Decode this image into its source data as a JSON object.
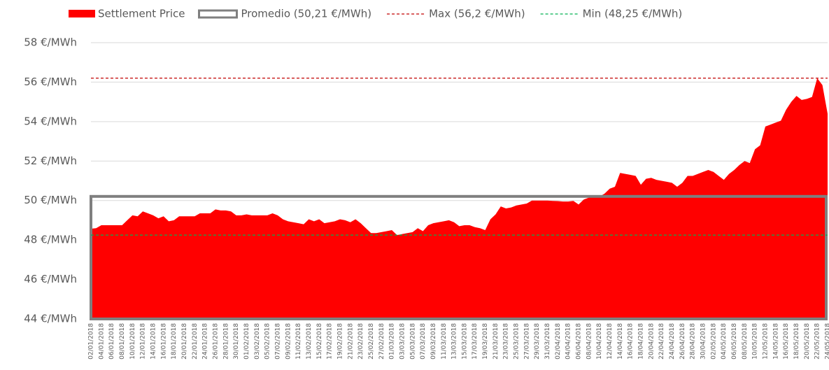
{
  "chart_data": {
    "type": "area",
    "series": [
      {
        "name": "Settlement Price",
        "color": "#ff0000",
        "values": [
          48.57,
          48.6,
          48.75,
          48.75,
          48.75,
          48.75,
          48.75,
          49.0,
          49.25,
          49.2,
          49.45,
          49.35,
          49.25,
          49.1,
          49.2,
          48.95,
          49.0,
          49.2,
          49.2,
          49.2,
          49.2,
          49.35,
          49.35,
          49.35,
          49.55,
          49.5,
          49.5,
          49.45,
          49.25,
          49.25,
          49.3,
          49.25,
          49.25,
          49.25,
          49.25,
          49.35,
          49.25,
          49.05,
          48.95,
          48.9,
          48.85,
          48.8,
          49.05,
          48.95,
          49.05,
          48.85,
          48.9,
          48.95,
          49.05,
          49.0,
          48.9,
          49.05,
          48.85,
          48.6,
          48.35,
          48.35,
          48.4,
          48.45,
          48.5,
          48.25,
          48.3,
          48.35,
          48.4,
          48.6,
          48.45,
          48.75,
          48.85,
          48.9,
          48.95,
          49.0,
          48.9,
          48.7,
          48.75,
          48.75,
          48.65,
          48.6,
          48.5,
          49.05,
          49.3,
          49.7,
          49.6,
          49.65,
          49.75,
          49.8,
          49.85,
          50.0,
          50.0,
          50.0,
          50.0,
          49.98,
          49.97,
          49.95,
          49.95,
          49.98,
          49.8,
          50.05,
          50.15,
          50.2,
          50.2,
          50.35,
          50.6,
          50.7,
          51.4,
          51.35,
          51.3,
          51.25,
          50.8,
          51.1,
          51.15,
          51.05,
          51.0,
          50.95,
          50.9,
          50.7,
          50.9,
          51.25,
          51.25,
          51.35,
          51.45,
          51.55,
          51.45,
          51.25,
          51.05,
          51.35,
          51.55,
          51.8,
          52.0,
          51.9,
          52.6,
          52.8,
          53.75,
          53.85,
          53.95,
          54.05,
          54.6,
          55.0,
          55.3,
          55.1,
          55.15,
          55.25,
          56.2,
          55.85,
          54.4
        ]
      }
    ],
    "reference_lines": [
      {
        "name": "Promedio (50,21 €/MWh)",
        "value": 50.21,
        "color": "#7f7f7f",
        "style": "box"
      },
      {
        "name": "Max (56,2 €/MWh)",
        "value": 56.2,
        "color": "#c00000",
        "style": "dashed"
      },
      {
        "name": "Min (48,25 €/MWh)",
        "value": 48.25,
        "color": "#00b050",
        "style": "dashed"
      }
    ],
    "categories": [
      "02/01/2018",
      null,
      "04/01/2018",
      null,
      "06/01/2018",
      null,
      "08/01/2018",
      null,
      "10/01/2018",
      null,
      "12/01/2018",
      null,
      "14/01/2018",
      null,
      "16/01/2018",
      null,
      "18/01/2018",
      null,
      "20/01/2018",
      null,
      "22/01/2018",
      null,
      "24/01/2018",
      null,
      "26/01/2018",
      null,
      "28/01/2018",
      null,
      "30/01/2018",
      null,
      "01/02/2018",
      null,
      "03/02/2018",
      null,
      "05/02/2018",
      null,
      "07/02/2018",
      null,
      "09/02/2018",
      null,
      "11/02/2018",
      null,
      "13/02/2018",
      null,
      "15/02/2018",
      null,
      "17/02/2018",
      null,
      "19/02/2018",
      null,
      "21/02/2018",
      null,
      "23/02/2018",
      null,
      "25/02/2018",
      null,
      "27/02/2018",
      null,
      "01/03/2018",
      null,
      "03/03/2018",
      null,
      "05/03/2018",
      null,
      "07/03/2018",
      null,
      "09/03/2018",
      null,
      "11/03/2018",
      null,
      "13/03/2018",
      null,
      "15/03/2018",
      null,
      "17/03/2018",
      null,
      "19/03/2018",
      null,
      "21/03/2018",
      null,
      "23/03/2018",
      null,
      "25/03/2018",
      null,
      "27/03/2018",
      null,
      "29/03/2018",
      null,
      "31/03/2018",
      null,
      "02/04/2018",
      null,
      "04/04/2018",
      null,
      "06/04/2018",
      null,
      "08/04/2018",
      null,
      "10/04/2018",
      null,
      "12/04/2018",
      null,
      "14/04/2018",
      null,
      "16/04/2018",
      null,
      "18/04/2018",
      null,
      "20/04/2018",
      null,
      "22/04/2018",
      null,
      "24/04/2018",
      null,
      "26/04/2018",
      null,
      "28/04/2018",
      null,
      "30/04/2018",
      null,
      "02/05/2018",
      null,
      "04/05/2018",
      null,
      "06/05/2018",
      null,
      "08/05/2018",
      null,
      "10/05/2018",
      null,
      "12/05/2018",
      null,
      "14/05/2018",
      null,
      "16/05/2018",
      null,
      "18/05/2018",
      null,
      "20/05/2018",
      null,
      "22/05/2018",
      null,
      "24/05/2018"
    ],
    "ylim": [
      44,
      58
    ],
    "yticks": [
      {
        "value": 44,
        "label": "44 €/MWh"
      },
      {
        "value": 46,
        "label": "46 €/MWh"
      },
      {
        "value": 48,
        "label": "48 €/MWh"
      },
      {
        "value": 50,
        "label": "50 €/MWh"
      },
      {
        "value": 52,
        "label": "52 €/MWh"
      },
      {
        "value": 54,
        "label": "54 €/MWh"
      },
      {
        "value": 56,
        "label": "56 €/MWh"
      },
      {
        "value": 58,
        "label": "58 €/MWh"
      }
    ],
    "grid": true,
    "legend": "top"
  }
}
